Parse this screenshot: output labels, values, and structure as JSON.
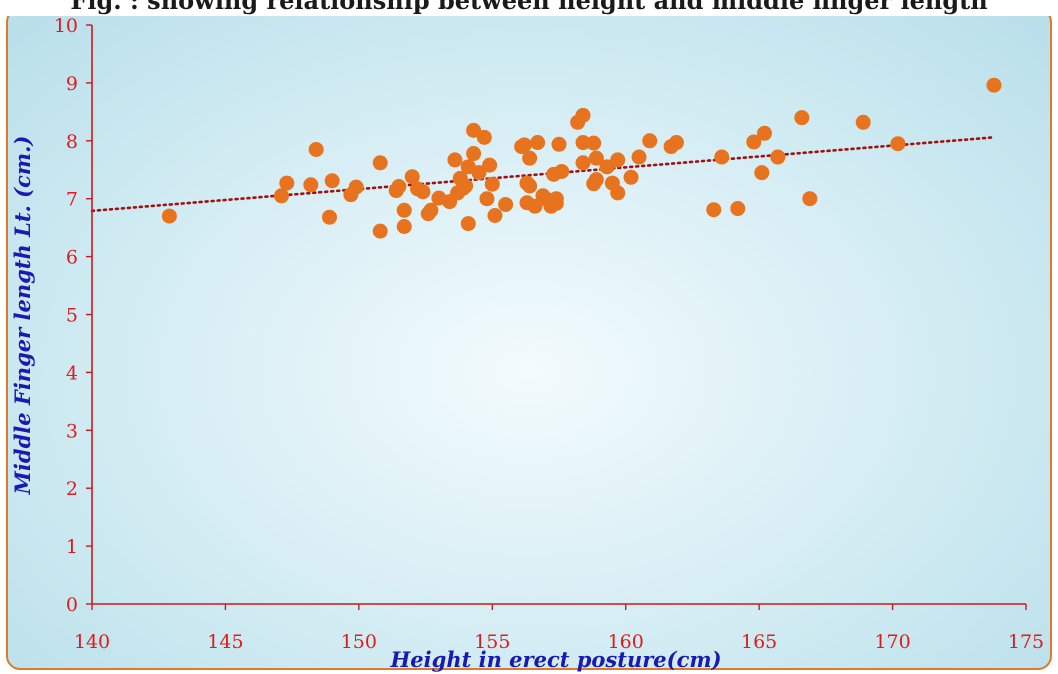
{
  "chart_data": {
    "type": "scatter",
    "title": "Fig. : showing relationship between height and middle finger length",
    "xlabel": "Height in erect posture(cm)",
    "ylabel": "Middle Finger length Lt. (cm.)",
    "xlim": [
      140,
      175
    ],
    "ylim": [
      0,
      10
    ],
    "xticks": [
      140,
      145,
      150,
      155,
      160,
      165,
      170,
      175
    ],
    "yticks": [
      0,
      1,
      2,
      3,
      4,
      5,
      6,
      7,
      8,
      9,
      10
    ],
    "grid": false,
    "trendline": {
      "style": "dotted",
      "color": "#a01010",
      "x": [
        140,
        173.8
      ],
      "y": [
        6.79,
        8.06
      ]
    },
    "marker_color": "#e8731f",
    "axis_color": "#cc1a1a",
    "series": [
      {
        "points": [
          [
            142.9,
            6.7
          ],
          [
            147.1,
            7.05
          ],
          [
            147.3,
            7.27
          ],
          [
            148.2,
            7.24
          ],
          [
            148.4,
            7.85
          ],
          [
            148.9,
            6.68
          ],
          [
            149.0,
            7.31
          ],
          [
            149.7,
            7.07
          ],
          [
            149.9,
            7.2
          ],
          [
            150.8,
            6.44
          ],
          [
            150.8,
            7.62
          ],
          [
            151.4,
            7.14
          ],
          [
            151.5,
            7.21
          ],
          [
            151.7,
            6.52
          ],
          [
            151.7,
            6.8
          ],
          [
            152.0,
            7.38
          ],
          [
            152.2,
            7.17
          ],
          [
            152.4,
            7.12
          ],
          [
            152.6,
            6.74
          ],
          [
            152.7,
            6.8
          ],
          [
            153.0,
            7.01
          ],
          [
            153.4,
            6.95
          ],
          [
            153.6,
            7.67
          ],
          [
            153.7,
            7.1
          ],
          [
            153.8,
            7.35
          ],
          [
            153.9,
            7.18
          ],
          [
            154.0,
            7.22
          ],
          [
            154.1,
            7.55
          ],
          [
            154.1,
            6.57
          ],
          [
            154.3,
            7.78
          ],
          [
            154.3,
            8.18
          ],
          [
            154.5,
            7.45
          ],
          [
            154.7,
            8.06
          ],
          [
            154.8,
            7.0
          ],
          [
            154.9,
            7.58
          ],
          [
            155.0,
            7.25
          ],
          [
            155.1,
            6.71
          ],
          [
            155.5,
            6.9
          ],
          [
            156.1,
            7.9
          ],
          [
            156.2,
            7.93
          ],
          [
            156.3,
            6.93
          ],
          [
            156.3,
            7.27
          ],
          [
            156.4,
            7.22
          ],
          [
            156.4,
            7.7
          ],
          [
            156.6,
            6.87
          ],
          [
            156.7,
            7.97
          ],
          [
            156.9,
            7.05
          ],
          [
            157.0,
            7.0
          ],
          [
            157.2,
            6.87
          ],
          [
            157.2,
            6.9
          ],
          [
            157.3,
            7.42
          ],
          [
            157.4,
            7.0
          ],
          [
            157.4,
            6.92
          ],
          [
            157.5,
            7.94
          ],
          [
            157.6,
            7.47
          ],
          [
            158.2,
            8.32
          ],
          [
            158.4,
            8.44
          ],
          [
            158.4,
            7.62
          ],
          [
            158.4,
            7.97
          ],
          [
            158.8,
            7.96
          ],
          [
            158.8,
            7.26
          ],
          [
            158.9,
            7.33
          ],
          [
            158.9,
            7.7
          ],
          [
            159.3,
            7.55
          ],
          [
            159.5,
            7.27
          ],
          [
            159.7,
            7.1
          ],
          [
            159.7,
            7.67
          ],
          [
            160.2,
            7.37
          ],
          [
            160.5,
            7.72
          ],
          [
            160.9,
            8.0
          ],
          [
            161.7,
            7.9
          ],
          [
            161.9,
            7.97
          ],
          [
            163.3,
            6.81
          ],
          [
            163.6,
            7.72
          ],
          [
            164.2,
            6.83
          ],
          [
            164.8,
            7.98
          ],
          [
            165.1,
            7.45
          ],
          [
            165.2,
            8.13
          ],
          [
            165.7,
            7.72
          ],
          [
            166.6,
            8.4
          ],
          [
            166.9,
            7.0
          ],
          [
            168.9,
            8.32
          ],
          [
            170.2,
            7.95
          ],
          [
            173.8,
            8.96
          ]
        ]
      }
    ]
  }
}
